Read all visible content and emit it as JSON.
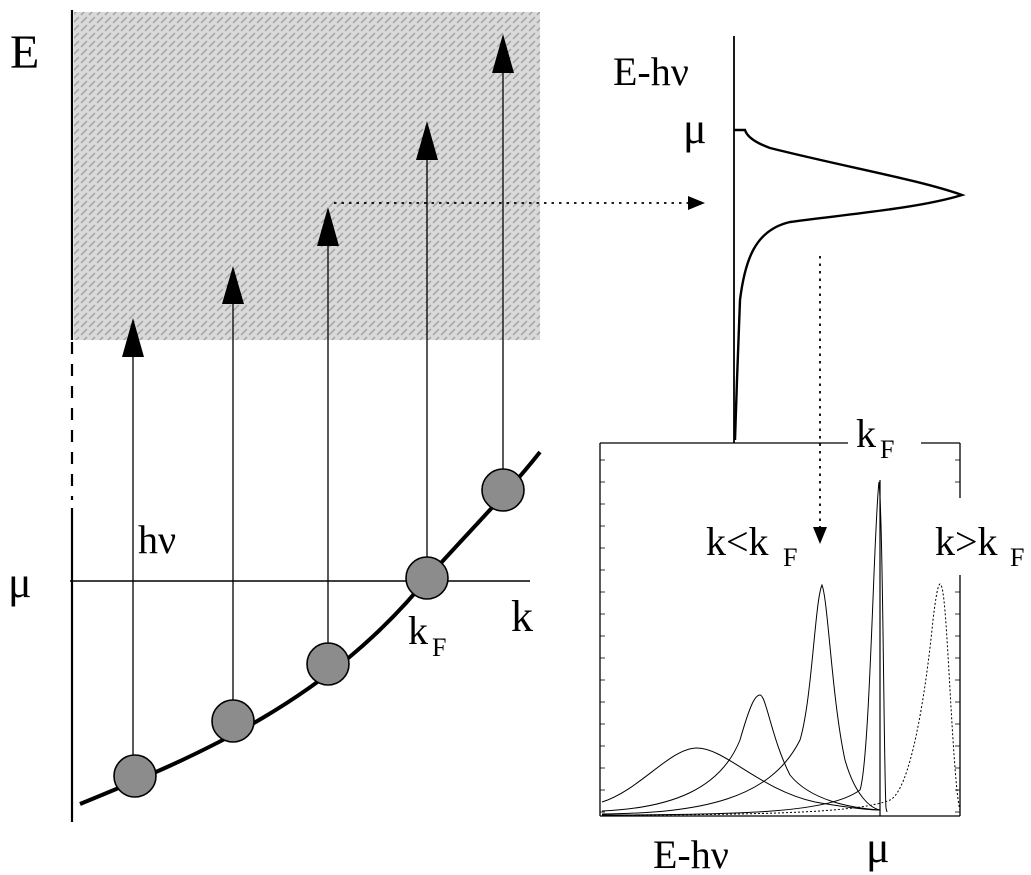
{
  "labels": {
    "energy_axis": "E",
    "momentum_axis": "k",
    "chem_potential": "μ",
    "photon_energy": "hν",
    "fermi_k_main": "k",
    "fermi_k_main_sub": "F",
    "edc_axis": "E-hν",
    "edc_mu": "μ",
    "panel_kF": "k",
    "panel_kF_sub": "F",
    "k_less": "k<k",
    "k_less_sub": "F",
    "k_greater": "k>k",
    "k_greater_sub": "F",
    "panel_xlabel": "E-hν",
    "panel_mu": "μ"
  },
  "colors": {
    "line": "#000000",
    "electron_fill": "#8c8c8c",
    "hatch_region": "#b9b9b9"
  },
  "electrons_count": 5,
  "spectra": [
    "k<kF",
    "k<kF",
    "k<kF",
    "k=kF",
    "k>kF"
  ]
}
